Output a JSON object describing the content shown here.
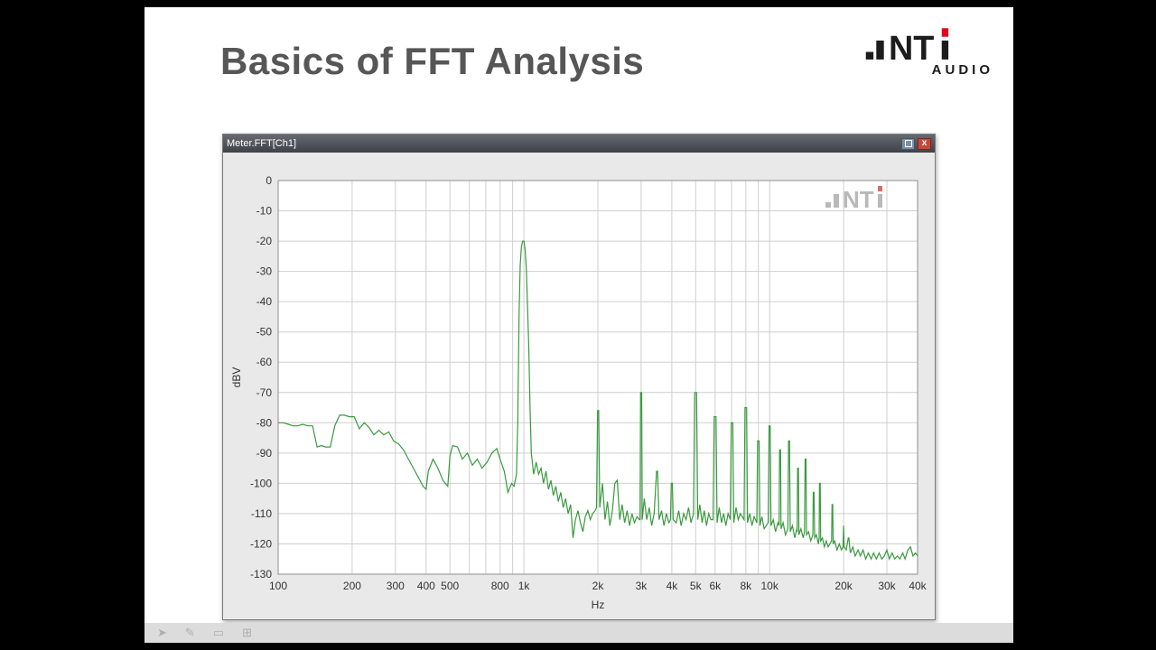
{
  "slide": {
    "title": "Basics of FFT Analysis"
  },
  "logo": {
    "letters": "NT",
    "audio": "AUDIO",
    "black": "#1c1c1c",
    "red": "#e2001a"
  },
  "window": {
    "title": "Meter.FFT[Ch1]",
    "close_label": "x"
  },
  "toolbar": {
    "icons": [
      {
        "name": "pointer",
        "glyph": "➤"
      },
      {
        "name": "pen",
        "glyph": "✎"
      },
      {
        "name": "frame",
        "glyph": "▭"
      },
      {
        "name": "grid",
        "glyph": "⊞"
      }
    ]
  },
  "chart_data": {
    "type": "line",
    "title": "",
    "xlabel": "Hz",
    "ylabel": "dBV",
    "x_scale": "log",
    "xlim": [
      100,
      40000
    ],
    "ylim": [
      -130,
      0
    ],
    "grid": true,
    "line_color": "#3a9a3f",
    "grid_color": "#cfcfcf",
    "border_color": "#8f8f8f",
    "label_color": "#333333",
    "watermark_color": "#b9b9b9",
    "watermark_dot": "#e06a5f",
    "y_ticks": [
      0,
      -10,
      -20,
      -30,
      -40,
      -50,
      -60,
      -70,
      -80,
      -90,
      -100,
      -110,
      -120,
      -130
    ],
    "x_gridlines": [
      100,
      200,
      300,
      400,
      500,
      600,
      700,
      800,
      900,
      1000,
      2000,
      3000,
      4000,
      5000,
      6000,
      7000,
      8000,
      9000,
      10000,
      20000,
      30000,
      40000
    ],
    "x_tick_labels": [
      {
        "f": 100,
        "label": "100"
      },
      {
        "f": 200,
        "label": "200"
      },
      {
        "f": 300,
        "label": "300"
      },
      {
        "f": 400,
        "label": "400"
      },
      {
        "f": 500,
        "label": "500"
      },
      {
        "f": 800,
        "label": "800"
      },
      {
        "f": 1000,
        "label": "1k"
      },
      {
        "f": 2000,
        "label": "2k"
      },
      {
        "f": 3000,
        "label": "3k"
      },
      {
        "f": 4000,
        "label": "4k"
      },
      {
        "f": 5000,
        "label": "5k"
      },
      {
        "f": 6000,
        "label": "6k"
      },
      {
        "f": 8000,
        "label": "8k"
      },
      {
        "f": 10000,
        "label": "10k"
      },
      {
        "f": 20000,
        "label": "20k"
      },
      {
        "f": 30000,
        "label": "30k"
      },
      {
        "f": 40000,
        "label": "40k"
      }
    ],
    "points": [
      [
        100,
        -80
      ],
      [
        105,
        -80
      ],
      [
        110,
        -80.5
      ],
      [
        115,
        -81
      ],
      [
        120,
        -81
      ],
      [
        126,
        -80.5
      ],
      [
        132,
        -81
      ],
      [
        138,
        -81
      ],
      [
        144,
        -88
      ],
      [
        150,
        -87.5
      ],
      [
        156,
        -88
      ],
      [
        163,
        -88
      ],
      [
        170,
        -81
      ],
      [
        178,
        -77.5
      ],
      [
        186,
        -77.5
      ],
      [
        195,
        -78
      ],
      [
        204,
        -78
      ],
      [
        214,
        -82
      ],
      [
        224,
        -80
      ],
      [
        234,
        -81.5
      ],
      [
        245,
        -84
      ],
      [
        257,
        -82.5
      ],
      [
        269,
        -84
      ],
      [
        282,
        -83
      ],
      [
        295,
        -86
      ],
      [
        309,
        -87
      ],
      [
        324,
        -89
      ],
      [
        339,
        -92
      ],
      [
        355,
        -95
      ],
      [
        372,
        -98
      ],
      [
        389,
        -101
      ],
      [
        400,
        -102
      ],
      [
        408,
        -96
      ],
      [
        427,
        -92
      ],
      [
        447,
        -95
      ],
      [
        468,
        -99
      ],
      [
        490,
        -101
      ],
      [
        500,
        -91
      ],
      [
        513,
        -87.5
      ],
      [
        537,
        -88
      ],
      [
        562,
        -92
      ],
      [
        589,
        -90
      ],
      [
        617,
        -94
      ],
      [
        646,
        -92
      ],
      [
        676,
        -95
      ],
      [
        708,
        -93
      ],
      [
        741,
        -90
      ],
      [
        776,
        -88.5
      ],
      [
        800,
        -92
      ],
      [
        832,
        -96
      ],
      [
        861,
        -103
      ],
      [
        891,
        -100
      ],
      [
        912,
        -101
      ],
      [
        933,
        -97
      ],
      [
        944,
        -80
      ],
      [
        955,
        -45
      ],
      [
        966,
        -28
      ],
      [
        977,
        -22
      ],
      [
        988,
        -20
      ],
      [
        1000,
        -20
      ],
      [
        1012,
        -23
      ],
      [
        1024,
        -30
      ],
      [
        1047,
        -55
      ],
      [
        1059,
        -75
      ],
      [
        1072,
        -90
      ],
      [
        1096,
        -97
      ],
      [
        1122,
        -93
      ],
      [
        1148,
        -97
      ],
      [
        1175,
        -95
      ],
      [
        1202,
        -100
      ],
      [
        1230,
        -96
      ],
      [
        1259,
        -102
      ],
      [
        1288,
        -99
      ],
      [
        1318,
        -104
      ],
      [
        1349,
        -101
      ],
      [
        1380,
        -106
      ],
      [
        1413,
        -103
      ],
      [
        1445,
        -108
      ],
      [
        1479,
        -105
      ],
      [
        1514,
        -110
      ],
      [
        1549,
        -107
      ],
      [
        1585,
        -118
      ],
      [
        1622,
        -112
      ],
      [
        1660,
        -109
      ],
      [
        1698,
        -113
      ],
      [
        1738,
        -116
      ],
      [
        1778,
        -111
      ],
      [
        1820,
        -109
      ],
      [
        1862,
        -112
      ],
      [
        1905,
        -110
      ],
      [
        1950,
        -109
      ],
      [
        1975,
        -108
      ],
      [
        1995,
        -76
      ],
      [
        2015,
        -76
      ],
      [
        2035,
        -108
      ],
      [
        2089,
        -100
      ],
      [
        2138,
        -112
      ],
      [
        2188,
        -106
      ],
      [
        2239,
        -114
      ],
      [
        2291,
        -109
      ],
      [
        2344,
        -100
      ],
      [
        2399,
        -99
      ],
      [
        2455,
        -112
      ],
      [
        2512,
        -107
      ],
      [
        2570,
        -113
      ],
      [
        2630,
        -109
      ],
      [
        2692,
        -114
      ],
      [
        2754,
        -110
      ],
      [
        2818,
        -113
      ],
      [
        2884,
        -111
      ],
      [
        2951,
        -112
      ],
      [
        2970,
        -112
      ],
      [
        2985,
        -70
      ],
      [
        3015,
        -70
      ],
      [
        3030,
        -112
      ],
      [
        3090,
        -105
      ],
      [
        3162,
        -112
      ],
      [
        3236,
        -108
      ],
      [
        3311,
        -114
      ],
      [
        3388,
        -110
      ],
      [
        3467,
        -96
      ],
      [
        3500,
        -96
      ],
      [
        3548,
        -112
      ],
      [
        3631,
        -109
      ],
      [
        3715,
        -114
      ],
      [
        3802,
        -110
      ],
      [
        3890,
        -113
      ],
      [
        3950,
        -112
      ],
      [
        3980,
        -100
      ],
      [
        4020,
        -100
      ],
      [
        4050,
        -112
      ],
      [
        4169,
        -113
      ],
      [
        4266,
        -109
      ],
      [
        4365,
        -114
      ],
      [
        4467,
        -110
      ],
      [
        4571,
        -112
      ],
      [
        4677,
        -108
      ],
      [
        4786,
        -113
      ],
      [
        4900,
        -110
      ],
      [
        4955,
        -70
      ],
      [
        5045,
        -70
      ],
      [
        5100,
        -112
      ],
      [
        5200,
        -107
      ],
      [
        5309,
        -113
      ],
      [
        5420,
        -109
      ],
      [
        5534,
        -114
      ],
      [
        5649,
        -110
      ],
      [
        5766,
        -112
      ],
      [
        5888,
        -112
      ],
      [
        5950,
        -78
      ],
      [
        6050,
        -78
      ],
      [
        6110,
        -113
      ],
      [
        6237,
        -108
      ],
      [
        6368,
        -113
      ],
      [
        6501,
        -110
      ],
      [
        6637,
        -114
      ],
      [
        6776,
        -110
      ],
      [
        6918,
        -112
      ],
      [
        6980,
        -80
      ],
      [
        7080,
        -80
      ],
      [
        7145,
        -113
      ],
      [
        7300,
        -108
      ],
      [
        7450,
        -112
      ],
      [
        7600,
        -110
      ],
      [
        7870,
        -112
      ],
      [
        7940,
        -75
      ],
      [
        8060,
        -75
      ],
      [
        8130,
        -113
      ],
      [
        8300,
        -110
      ],
      [
        8470,
        -114
      ],
      [
        8650,
        -111
      ],
      [
        8870,
        -113
      ],
      [
        8940,
        -86
      ],
      [
        9060,
        -86
      ],
      [
        9130,
        -114
      ],
      [
        9300,
        -111
      ],
      [
        9500,
        -115
      ],
      [
        9870,
        -113
      ],
      [
        9950,
        -81
      ],
      [
        10050,
        -81
      ],
      [
        10130,
        -114
      ],
      [
        10350,
        -112
      ],
      [
        10570,
        -116
      ],
      [
        10800,
        -113
      ],
      [
        10930,
        -114
      ],
      [
        10980,
        -89
      ],
      [
        11080,
        -89
      ],
      [
        11130,
        -115
      ],
      [
        11350,
        -113
      ],
      [
        11600,
        -117
      ],
      [
        11870,
        -115
      ],
      [
        11950,
        -86
      ],
      [
        12050,
        -86
      ],
      [
        12130,
        -116
      ],
      [
        12380,
        -114
      ],
      [
        12650,
        -118
      ],
      [
        12900,
        -115
      ],
      [
        12950,
        -116
      ],
      [
        13000,
        -95
      ],
      [
        13100,
        -95
      ],
      [
        13160,
        -117
      ],
      [
        13400,
        -115
      ],
      [
        13700,
        -118
      ],
      [
        13870,
        -116
      ],
      [
        13950,
        -92
      ],
      [
        14050,
        -92
      ],
      [
        14130,
        -117
      ],
      [
        14400,
        -116
      ],
      [
        14700,
        -119
      ],
      [
        15000,
        -117
      ],
      [
        15050,
        -103
      ],
      [
        15150,
        -103
      ],
      [
        15250,
        -118
      ],
      [
        15500,
        -117
      ],
      [
        15800,
        -120
      ],
      [
        15900,
        -118
      ],
      [
        15960,
        -100
      ],
      [
        16060,
        -100
      ],
      [
        16130,
        -119
      ],
      [
        16400,
        -118
      ],
      [
        16700,
        -121
      ],
      [
        17000,
        -119
      ],
      [
        17300,
        -121
      ],
      [
        17870,
        -119
      ],
      [
        17950,
        -107
      ],
      [
        18050,
        -107
      ],
      [
        18130,
        -120
      ],
      [
        18400,
        -119
      ],
      [
        18800,
        -122
      ],
      [
        19200,
        -120
      ],
      [
        19600,
        -122
      ],
      [
        19900,
        -121
      ],
      [
        20000,
        -114
      ],
      [
        20100,
        -121
      ],
      [
        20500,
        -122
      ],
      [
        20900,
        -118
      ],
      [
        21000,
        -118
      ],
      [
        21300,
        -123
      ],
      [
        21800,
        -121
      ],
      [
        22300,
        -124
      ],
      [
        22900,
        -122
      ],
      [
        23400,
        -124
      ],
      [
        24000,
        -122
      ],
      [
        24600,
        -125
      ],
      [
        25200,
        -123
      ],
      [
        25900,
        -125
      ],
      [
        26500,
        -123
      ],
      [
        27200,
        -125
      ],
      [
        27900,
        -123
      ],
      [
        28600,
        -125
      ],
      [
        29300,
        -124
      ],
      [
        30000,
        -122
      ],
      [
        30700,
        -125
      ],
      [
        31500,
        -123
      ],
      [
        32300,
        -125
      ],
      [
        33100,
        -124
      ],
      [
        33900,
        -125
      ],
      [
        34800,
        -123
      ],
      [
        35600,
        -125
      ],
      [
        36500,
        -122
      ],
      [
        37400,
        -121
      ],
      [
        38300,
        -124
      ],
      [
        39200,
        -123
      ],
      [
        40000,
        -124
      ]
    ]
  }
}
